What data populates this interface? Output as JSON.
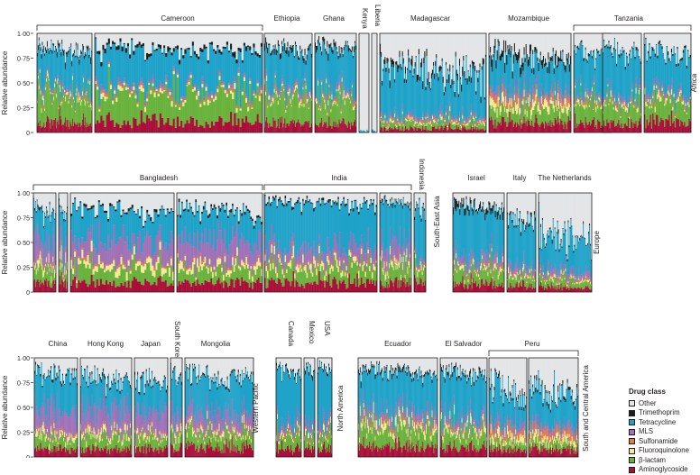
{
  "chart_data": {
    "type": "bar",
    "stacked": true,
    "normalized": true,
    "ylabel": "Relative abundance",
    "ylim": [
      0,
      1
    ],
    "yticks": [
      "0",
      "0·25",
      "0·50",
      "0·75",
      "1·00"
    ],
    "grid": false,
    "legend_position": "bottom-right",
    "legend_title": "Drug class",
    "classes": [
      {
        "name": "Other",
        "color": "#e3e5e7"
      },
      {
        "name": "Trimethoprim",
        "color": "#1d1d1b"
      },
      {
        "name": "Tetracycline",
        "color": "#1fa3c9"
      },
      {
        "name": "MLS",
        "color": "#9f72b8"
      },
      {
        "name": "Sulfonamide",
        "color": "#e9784a"
      },
      {
        "name": "Fluoroquinolone",
        "color": "#f4ea97"
      },
      {
        "name": "β-lactam",
        "color": "#69b33d"
      },
      {
        "name": "Aminoglycoside",
        "color": "#ad0d3a"
      }
    ],
    "rows": [
      {
        "region": "Africa",
        "countries": [
          {
            "name": "Cameroon",
            "panels": 2,
            "samples": 175,
            "mean_composition": {
              "Other": 0.12,
              "Trimethoprim": 0.03,
              "Tetracycline": 0.38,
              "MLS": 0.03,
              "Sulfonamide": 0.02,
              "Fluoroquinolone": 0.03,
              "β-lactam": 0.28,
              "Aminoglycoside": 0.11
            }
          },
          {
            "name": "Ethiopia",
            "panels": 1,
            "samples": 50,
            "mean_composition": {
              "Other": 0.12,
              "Trimethoprim": 0.04,
              "Tetracycline": 0.4,
              "MLS": 0.04,
              "Sulfonamide": 0.02,
              "Fluoroquinolone": 0.03,
              "β-lactam": 0.26,
              "Aminoglycoside": 0.09
            }
          },
          {
            "name": "Ghana",
            "panels": 1,
            "samples": 45,
            "mean_composition": {
              "Other": 0.1,
              "Trimethoprim": 0.04,
              "Tetracycline": 0.42,
              "MLS": 0.04,
              "Sulfonamide": 0.02,
              "Fluoroquinolone": 0.03,
              "β-lactam": 0.26,
              "Aminoglycoside": 0.09
            }
          },
          {
            "name": "Kenya",
            "panels": 1,
            "samples": 8,
            "mean_composition": {
              "Other": 0.98,
              "Trimethoprim": 0.0,
              "Tetracycline": 0.02,
              "MLS": 0.0,
              "Sulfonamide": 0.0,
              "Fluoroquinolone": 0.0,
              "β-lactam": 0.0,
              "Aminoglycoside": 0.0
            }
          },
          {
            "name": "Liberia",
            "panels": 1,
            "samples": 3,
            "mean_composition": {
              "Other": 0.98,
              "Trimethoprim": 0.0,
              "Tetracycline": 0.02,
              "MLS": 0.0,
              "Sulfonamide": 0.0,
              "Fluoroquinolone": 0.0,
              "β-lactam": 0.0,
              "Aminoglycoside": 0.0
            }
          },
          {
            "name": "Madagascar",
            "panels": 1,
            "samples": 110,
            "mean_composition": {
              "Other": 0.3,
              "Trimethoprim": 0.05,
              "Tetracycline": 0.48,
              "MLS": 0.03,
              "Sulfonamide": 0.02,
              "Fluoroquinolone": 0.02,
              "β-lactam": 0.06,
              "Aminoglycoside": 0.04
            }
          },
          {
            "name": "Mozambique",
            "panels": 1,
            "samples": 85,
            "mean_composition": {
              "Other": 0.17,
              "Trimethoprim": 0.07,
              "Tetracycline": 0.33,
              "MLS": 0.06,
              "Sulfonamide": 0.06,
              "Fluoroquinolone": 0.07,
              "β-lactam": 0.14,
              "Aminoglycoside": 0.1
            }
          },
          {
            "name": "Tanzania",
            "panels": 3,
            "samples": 120,
            "mean_composition": {
              "Other": 0.14,
              "Trimethoprim": 0.02,
              "Tetracycline": 0.45,
              "MLS": 0.04,
              "Sulfonamide": 0.02,
              "Fluoroquinolone": 0.03,
              "β-lactam": 0.2,
              "Aminoglycoside": 0.1
            }
          }
        ]
      },
      {
        "region": "South-East Asia",
        "countries": [
          {
            "name": "Bangladesh",
            "panels": 4,
            "samples": 225,
            "mean_composition": {
              "Other": 0.14,
              "Trimethoprim": 0.02,
              "Tetracycline": 0.3,
              "MLS": 0.22,
              "Sulfonamide": 0.02,
              "Fluoroquinolone": 0.06,
              "β-lactam": 0.14,
              "Aminoglycoside": 0.1
            }
          },
          {
            "name": "India",
            "panels": 2,
            "samples": 165,
            "mean_composition": {
              "Other": 0.07,
              "Trimethoprim": 0.02,
              "Tetracycline": 0.45,
              "MLS": 0.14,
              "Sulfonamide": 0.02,
              "Fluoroquinolone": 0.05,
              "β-lactam": 0.15,
              "Aminoglycoside": 0.1
            }
          },
          {
            "name": "Indonesia",
            "panels": 1,
            "samples": 12,
            "mean_composition": {
              "Other": 0.12,
              "Trimethoprim": 0.02,
              "Tetracycline": 0.55,
              "MLS": 0.04,
              "Sulfonamide": 0.02,
              "Fluoroquinolone": 0.03,
              "β-lactam": 0.12,
              "Aminoglycoside": 0.1
            }
          }
        ]
      },
      {
        "region": "Europe",
        "countries": [
          {
            "name": "Israel",
            "panels": 1,
            "samples": 55,
            "mean_composition": {
              "Other": 0.1,
              "Trimethoprim": 0.05,
              "Tetracycline": 0.5,
              "MLS": 0.08,
              "Sulfonamide": 0.02,
              "Fluoroquinolone": 0.03,
              "β-lactam": 0.14,
              "Aminoglycoside": 0.08
            }
          },
          {
            "name": "Italy",
            "panels": 1,
            "samples": 30,
            "mean_composition": {
              "Other": 0.22,
              "Trimethoprim": 0.03,
              "Tetracycline": 0.48,
              "MLS": 0.07,
              "Sulfonamide": 0.02,
              "Fluoroquinolone": 0.03,
              "β-lactam": 0.09,
              "Aminoglycoside": 0.06
            }
          },
          {
            "name": "The Netherlands",
            "panels": 1,
            "samples": 60,
            "mean_composition": {
              "Other": 0.38,
              "Trimethoprim": 0.02,
              "Tetracycline": 0.36,
              "MLS": 0.07,
              "Sulfonamide": 0.02,
              "Fluoroquinolone": 0.02,
              "β-lactam": 0.08,
              "Aminoglycoside": 0.05
            }
          }
        ]
      },
      {
        "region": "Western Pacific",
        "countries": [
          {
            "name": "China",
            "panels": 1,
            "samples": 45,
            "mean_composition": {
              "Other": 0.13,
              "Trimethoprim": 0.02,
              "Tetracycline": 0.36,
              "MLS": 0.22,
              "Sulfonamide": 0.02,
              "Fluoroquinolone": 0.05,
              "β-lactam": 0.12,
              "Aminoglycoside": 0.08
            }
          },
          {
            "name": "Hong Kong",
            "panels": 1,
            "samples": 55,
            "mean_composition": {
              "Other": 0.16,
              "Trimethoprim": 0.02,
              "Tetracycline": 0.32,
              "MLS": 0.23,
              "Sulfonamide": 0.02,
              "Fluoroquinolone": 0.05,
              "β-lactam": 0.12,
              "Aminoglycoside": 0.08
            }
          },
          {
            "name": "Japan",
            "panels": 1,
            "samples": 35,
            "mean_composition": {
              "Other": 0.2,
              "Trimethoprim": 0.02,
              "Tetracycline": 0.3,
              "MLS": 0.22,
              "Sulfonamide": 0.02,
              "Fluoroquinolone": 0.04,
              "β-lactam": 0.12,
              "Aminoglycoside": 0.08
            }
          },
          {
            "name": "South Korea",
            "panels": 1,
            "samples": 12,
            "mean_composition": {
              "Other": 0.12,
              "Trimethoprim": 0.02,
              "Tetracycline": 0.45,
              "MLS": 0.16,
              "Sulfonamide": 0.02,
              "Fluoroquinolone": 0.04,
              "β-lactam": 0.11,
              "Aminoglycoside": 0.08
            }
          },
          {
            "name": "Mongolia",
            "panels": 1,
            "samples": 75,
            "mean_composition": {
              "Other": 0.14,
              "Trimethoprim": 0.02,
              "Tetracycline": 0.38,
              "MLS": 0.16,
              "Sulfonamide": 0.02,
              "Fluoroquinolone": 0.04,
              "β-lactam": 0.14,
              "Aminoglycoside": 0.1
            }
          }
        ]
      },
      {
        "region": "North America",
        "countries": [
          {
            "name": "Canada",
            "panels": 1,
            "samples": 28,
            "mean_composition": {
              "Other": 0.1,
              "Trimethoprim": 0.02,
              "Tetracycline": 0.56,
              "MLS": 0.07,
              "Sulfonamide": 0.02,
              "Fluoroquinolone": 0.03,
              "β-lactam": 0.12,
              "Aminoglycoside": 0.08
            }
          },
          {
            "name": "Mexico",
            "panels": 1,
            "samples": 12,
            "mean_composition": {
              "Other": 0.08,
              "Trimethoprim": 0.02,
              "Tetracycline": 0.58,
              "MLS": 0.07,
              "Sulfonamide": 0.02,
              "Fluoroquinolone": 0.03,
              "β-lactam": 0.12,
              "Aminoglycoside": 0.08
            }
          },
          {
            "name": "USA",
            "panels": 1,
            "samples": 16,
            "mean_composition": {
              "Other": 0.06,
              "Trimethoprim": 0.02,
              "Tetracycline": 0.6,
              "MLS": 0.07,
              "Sulfonamide": 0.02,
              "Fluoroquinolone": 0.03,
              "β-lactam": 0.12,
              "Aminoglycoside": 0.08
            }
          }
        ]
      },
      {
        "region": "South and Central America",
        "countries": [
          {
            "name": "Ecuador",
            "panels": 1,
            "samples": 95,
            "mean_composition": {
              "Other": 0.1,
              "Trimethoprim": 0.03,
              "Tetracycline": 0.4,
              "MLS": 0.08,
              "Sulfonamide": 0.03,
              "Fluoroquinolone": 0.06,
              "β-lactam": 0.2,
              "Aminoglycoside": 0.1
            }
          },
          {
            "name": "El Salvador",
            "panels": 1,
            "samples": 55,
            "mean_composition": {
              "Other": 0.12,
              "Trimethoprim": 0.03,
              "Tetracycline": 0.45,
              "MLS": 0.07,
              "Sulfonamide": 0.02,
              "Fluoroquinolone": 0.05,
              "β-lactam": 0.17,
              "Aminoglycoside": 0.09
            }
          },
          {
            "name": "Peru",
            "panels": 2,
            "samples": 105,
            "mean_composition": {
              "Other": 0.28,
              "Trimethoprim": 0.03,
              "Tetracycline": 0.33,
              "MLS": 0.07,
              "Sulfonamide": 0.07,
              "Fluoroquinolone": 0.06,
              "β-lactam": 0.08,
              "Aminoglycoside": 0.08
            }
          }
        ]
      }
    ]
  }
}
